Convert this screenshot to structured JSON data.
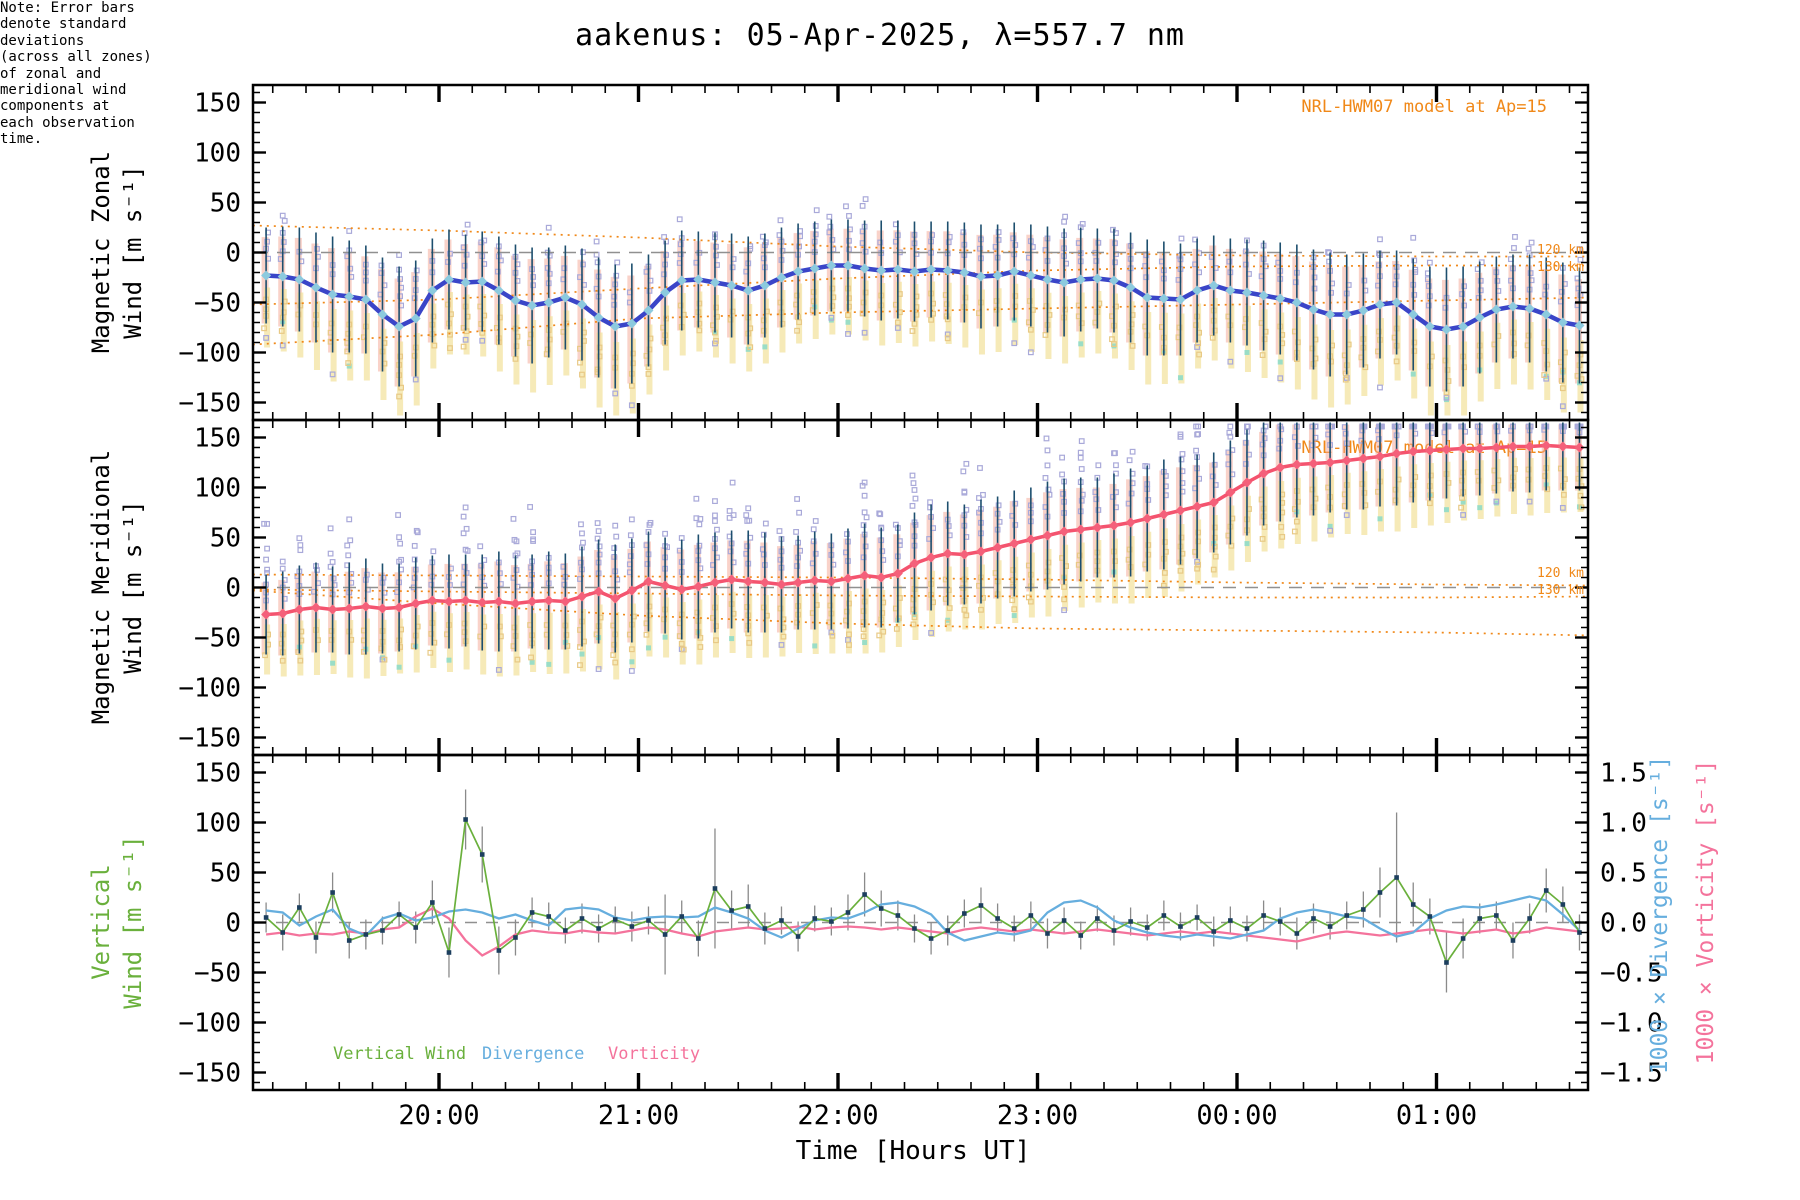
{
  "title": "aakenus: 05-Apr-2025, λ=557.7 nm",
  "annotations": {
    "model_label_zonal": "NRL-HWM07 model at Ap=15",
    "model_label_meridional": "NRL-HWM07 model at Ap=15",
    "alt_120": "120 km",
    "alt_130": "130 km",
    "note_lines": [
      "Note: Error bars",
      "denote standard",
      "deviations",
      "(across all zones)",
      "of zonal and",
      "meridional wind",
      "components at",
      "each observation",
      "time."
    ]
  },
  "axes": {
    "x_label": "Time [Hours UT]",
    "x_tick_labels": [
      "20:00",
      "21:00",
      "22:00",
      "23:00",
      "00:00",
      "01:00"
    ],
    "y_tick_labels": [
      "150",
      "100",
      "50",
      "0",
      "−50",
      "−100",
      "−150"
    ],
    "right_tick_labels": [
      "1.5",
      "1.0",
      "0.5",
      "0.0",
      "−0.5",
      "−1.0",
      "−1.5"
    ],
    "panel1_label": [
      "Magnetic Zonal",
      "Wind [m s⁻¹]"
    ],
    "panel2_label": [
      "Magnetic Meridional",
      "Wind [m s⁻¹]"
    ],
    "panel3_label": [
      "Vertical",
      "Wind [m s⁻¹]"
    ],
    "right_label_divergence": "1000 × Divergence [s⁻¹]",
    "right_label_vorticity": "1000 × Vorticity [s⁻¹]",
    "y_range": [
      -150,
      150
    ],
    "right_range": [
      -1.5,
      1.5
    ],
    "x_range": [
      "19:04",
      "01:47"
    ]
  },
  "legend": {
    "vertical_wind": "Vertical Wind",
    "divergence": "Divergence",
    "vorticity": "Vorticity"
  },
  "colors": {
    "zonal_line": "#3a45c8",
    "zonal_marker": "#8ccade",
    "meridional_line": "#f4536e",
    "meridional_marker": "#f4607a",
    "vertical_line": "#6ab03c",
    "divergence_line": "#66aede",
    "vorticity_line": "#f4739c",
    "error_bar": "#1d4f6e",
    "error_bar_gray": "#8a8a8a",
    "model_orange": "#f08818",
    "zero_dash": "#909090",
    "lavender_square": "#a9a9d9",
    "khaki_square": "#e8c985",
    "salmon_bar": "#f4a593",
    "yellow_bar": "#f2e096",
    "cyan_fleck": "#8adbc8",
    "marker_navy": "#1c3e5e",
    "axis": "#000000"
  },
  "chart_data": {
    "type": "line",
    "x_unit": "minutes after 19:00 UT",
    "t_min": [
      8,
      13,
      18,
      23,
      28,
      33,
      38,
      43,
      48,
      53,
      58,
      63,
      68,
      73,
      78,
      83,
      88,
      93,
      98,
      103,
      108,
      113,
      118,
      123,
      128,
      133,
      138,
      143,
      148,
      153,
      158,
      163,
      168,
      173,
      178,
      183,
      188,
      193,
      198,
      203,
      208,
      213,
      218,
      223,
      228,
      233,
      238,
      243,
      248,
      253,
      258,
      263,
      268,
      273,
      278,
      283,
      288,
      293,
      298,
      303,
      308,
      313,
      318,
      323,
      328,
      333,
      338,
      343,
      348,
      353,
      358,
      363,
      368,
      373,
      378,
      383,
      388,
      393,
      398,
      403
    ],
    "series": [
      {
        "name": "zonal_wind_ms",
        "values": [
          -23,
          -24,
          -27,
          -35,
          -42,
          -44,
          -47,
          -62,
          -74,
          -66,
          -38,
          -27,
          -30,
          -29,
          -38,
          -48,
          -53,
          -50,
          -45,
          -52,
          -65,
          -74,
          -71,
          -58,
          -40,
          -28,
          -27,
          -30,
          -33,
          -38,
          -33,
          -25,
          -19,
          -16,
          -13,
          -13,
          -16,
          -18,
          -17,
          -19,
          -17,
          -18,
          -20,
          -24,
          -23,
          -19,
          -23,
          -27,
          -30,
          -27,
          -26,
          -28,
          -35,
          -45,
          -46,
          -47,
          -38,
          -33,
          -38,
          -40,
          -43,
          -46,
          -50,
          -57,
          -62,
          -62,
          -58,
          -52,
          -50,
          -62,
          -74,
          -77,
          -74,
          -65,
          -57,
          -54,
          -56,
          -62,
          -70,
          -73
        ]
      },
      {
        "name": "zonal_std",
        "values": [
          48,
          50,
          52,
          55,
          58,
          56,
          54,
          57,
          60,
          58,
          52,
          50,
          48,
          50,
          54,
          56,
          58,
          55,
          52,
          56,
          60,
          62,
          60,
          56,
          52,
          50,
          48,
          50,
          52,
          54,
          52,
          50,
          48,
          47,
          46,
          46,
          48,
          50,
          49,
          50,
          48,
          49,
          50,
          52,
          51,
          49,
          51,
          53,
          54,
          52,
          50,
          52,
          55,
          58,
          57,
          56,
          52,
          50,
          52,
          53,
          55,
          56,
          58,
          60,
          62,
          60,
          57,
          54,
          52,
          56,
          60,
          62,
          60,
          56,
          53,
          52,
          54,
          57,
          60,
          58
        ]
      },
      {
        "name": "meridional_wind_ms",
        "values": [
          -27,
          -26,
          -22,
          -20,
          -22,
          -21,
          -19,
          -21,
          -20,
          -16,
          -13,
          -14,
          -13,
          -15,
          -14,
          -16,
          -14,
          -13,
          -14,
          -9,
          -4,
          -11,
          -3,
          6,
          2,
          -2,
          1,
          5,
          8,
          6,
          5,
          3,
          5,
          7,
          6,
          9,
          12,
          10,
          14,
          24,
          30,
          34,
          33,
          36,
          40,
          44,
          48,
          52,
          56,
          58,
          60,
          62,
          65,
          69,
          73,
          77,
          81,
          85,
          95,
          105,
          114,
          120,
          123,
          124,
          125,
          127,
          129,
          131,
          134,
          136,
          137,
          138,
          139,
          139,
          140,
          141,
          141,
          142,
          141,
          140
        ]
      },
      {
        "name": "meridional_std",
        "values": [
          40,
          42,
          44,
          45,
          43,
          46,
          48,
          45,
          44,
          46,
          45,
          47,
          46,
          48,
          50,
          48,
          47,
          49,
          48,
          50,
          52,
          54,
          52,
          50,
          48,
          50,
          52,
          50,
          49,
          51,
          50,
          48,
          47,
          49,
          48,
          50,
          52,
          50,
          49,
          51,
          53,
          52,
          50,
          52,
          51,
          53,
          52,
          54,
          53,
          52,
          50,
          52,
          54,
          53,
          55,
          54,
          52,
          50,
          52,
          53,
          52,
          54,
          53,
          52,
          50,
          49,
          51,
          50,
          52,
          51,
          50,
          49,
          48,
          47,
          46,
          45,
          46,
          45,
          44,
          43
        ]
      },
      {
        "name": "vertical_wind_ms",
        "values": [
          5,
          -10,
          15,
          -15,
          30,
          -18,
          -12,
          -8,
          8,
          -5,
          20,
          -30,
          103,
          68,
          -28,
          -15,
          10,
          6,
          -8,
          4,
          -6,
          3,
          -4,
          2,
          -12,
          6,
          -16,
          34,
          12,
          16,
          -6,
          2,
          -14,
          4,
          1,
          10,
          28,
          14,
          7,
          -6,
          -16,
          -8,
          9,
          17,
          4,
          -6,
          7,
          -11,
          2,
          -13,
          4,
          -8,
          1,
          -5,
          7,
          -4,
          5,
          -9,
          2,
          -6,
          7,
          1,
          -11,
          4,
          -4,
          7,
          13,
          30,
          45,
          18,
          6,
          -40,
          -16,
          4,
          7,
          -18,
          4,
          32,
          18,
          -10
        ]
      },
      {
        "name": "vertical_std",
        "values": [
          15,
          18,
          14,
          16,
          20,
          18,
          15,
          14,
          13,
          16,
          22,
          25,
          30,
          28,
          24,
          18,
          15,
          14,
          13,
          15,
          14,
          13,
          15,
          14,
          40,
          16,
          18,
          60,
          20,
          22,
          16,
          14,
          15,
          13,
          14,
          18,
          22,
          18,
          15,
          14,
          16,
          15,
          14,
          18,
          15,
          13,
          14,
          15,
          13,
          14,
          13,
          15,
          14,
          13,
          15,
          14,
          13,
          15,
          14,
          13,
          15,
          14,
          16,
          15,
          13,
          14,
          18,
          25,
          65,
          22,
          18,
          30,
          20,
          15,
          14,
          18,
          15,
          22,
          18,
          18
        ]
      },
      {
        "name": "divergence_x1000",
        "values": [
          0.12,
          0.1,
          -0.03,
          0.06,
          0.13,
          -0.06,
          -0.13,
          0.04,
          0.09,
          0.02,
          0.05,
          0.11,
          0.13,
          0.1,
          0.04,
          0.08,
          0.02,
          -0.03,
          0.13,
          0.15,
          0.13,
          0.05,
          0.02,
          0.05,
          0.06,
          0.05,
          0.06,
          0.15,
          0.1,
          0.04,
          -0.08,
          -0.15,
          -0.06,
          0.02,
          0.05,
          0.04,
          0.1,
          0.18,
          0.2,
          0.16,
          0.08,
          -0.1,
          -0.18,
          -0.14,
          -0.1,
          -0.12,
          -0.08,
          0.1,
          0.2,
          0.22,
          0.15,
          0.02,
          -0.05,
          -0.1,
          -0.13,
          -0.15,
          -0.12,
          -0.14,
          -0.16,
          -0.12,
          -0.08,
          0.04,
          0.1,
          0.13,
          0.1,
          0.06,
          0.04,
          -0.06,
          -0.14,
          -0.1,
          0.04,
          0.12,
          0.16,
          0.15,
          0.18,
          0.22,
          0.26,
          0.22,
          0.08,
          -0.08
        ]
      },
      {
        "name": "vorticity_x1000",
        "values": [
          -0.12,
          -0.1,
          -0.13,
          -0.11,
          -0.12,
          -0.09,
          -0.11,
          -0.07,
          -0.05,
          0.06,
          0.14,
          0.04,
          -0.18,
          -0.33,
          -0.24,
          -0.12,
          -0.08,
          -0.1,
          -0.11,
          -0.08,
          -0.1,
          -0.11,
          -0.08,
          -0.05,
          -0.07,
          -0.11,
          -0.14,
          -0.09,
          -0.07,
          -0.05,
          -0.07,
          -0.06,
          -0.04,
          -0.07,
          -0.05,
          -0.04,
          -0.05,
          -0.07,
          -0.05,
          -0.07,
          -0.09,
          -0.11,
          -0.07,
          -0.05,
          -0.07,
          -0.09,
          -0.07,
          -0.09,
          -0.11,
          -0.09,
          -0.07,
          -0.09,
          -0.11,
          -0.13,
          -0.11,
          -0.09,
          -0.11,
          -0.09,
          -0.11,
          -0.13,
          -0.15,
          -0.17,
          -0.19,
          -0.15,
          -0.11,
          -0.09,
          -0.11,
          -0.13,
          -0.11,
          -0.09,
          -0.07,
          -0.09,
          -0.11,
          -0.09,
          -0.07,
          -0.11,
          -0.09,
          -0.05,
          -0.07,
          -0.09
        ]
      }
    ],
    "model_curves": {
      "zonal": [
        {
          "label": "120 km",
          "t": [
            4,
            60,
            120,
            180,
            240,
            300,
            360,
            407
          ],
          "v": [
            27,
            22,
            15,
            6,
            0,
            -3,
            -4,
            -4
          ]
        },
        {
          "label": "130 km",
          "t": [
            4,
            60,
            120,
            180,
            240,
            300,
            360,
            407
          ],
          "v": [
            -52,
            -47,
            -36,
            -26,
            -18,
            -14,
            -13,
            -13
          ]
        },
        {
          "label": "",
          "t": [
            4,
            60,
            120,
            180,
            240,
            300,
            360,
            407
          ],
          "v": [
            -92,
            -82,
            -66,
            -60,
            -56,
            -52,
            -48,
            -45
          ]
        }
      ],
      "meridional": [
        {
          "label": "120 km",
          "t": [
            4,
            60,
            120,
            180,
            240,
            300,
            360,
            407
          ],
          "v": [
            13,
            12,
            11,
            10,
            8,
            5,
            3,
            2
          ]
        },
        {
          "label": "130 km",
          "t": [
            4,
            60,
            120,
            180,
            240,
            300,
            360,
            407
          ],
          "v": [
            -2,
            -4,
            -6,
            -8,
            -9,
            -10,
            -10,
            -9
          ]
        },
        {
          "label": "",
          "t": [
            4,
            60,
            120,
            180,
            240,
            300,
            360,
            407
          ],
          "v": [
            -3,
            -16,
            -28,
            -36,
            -41,
            -43,
            -45,
            -48
          ]
        }
      ]
    }
  }
}
